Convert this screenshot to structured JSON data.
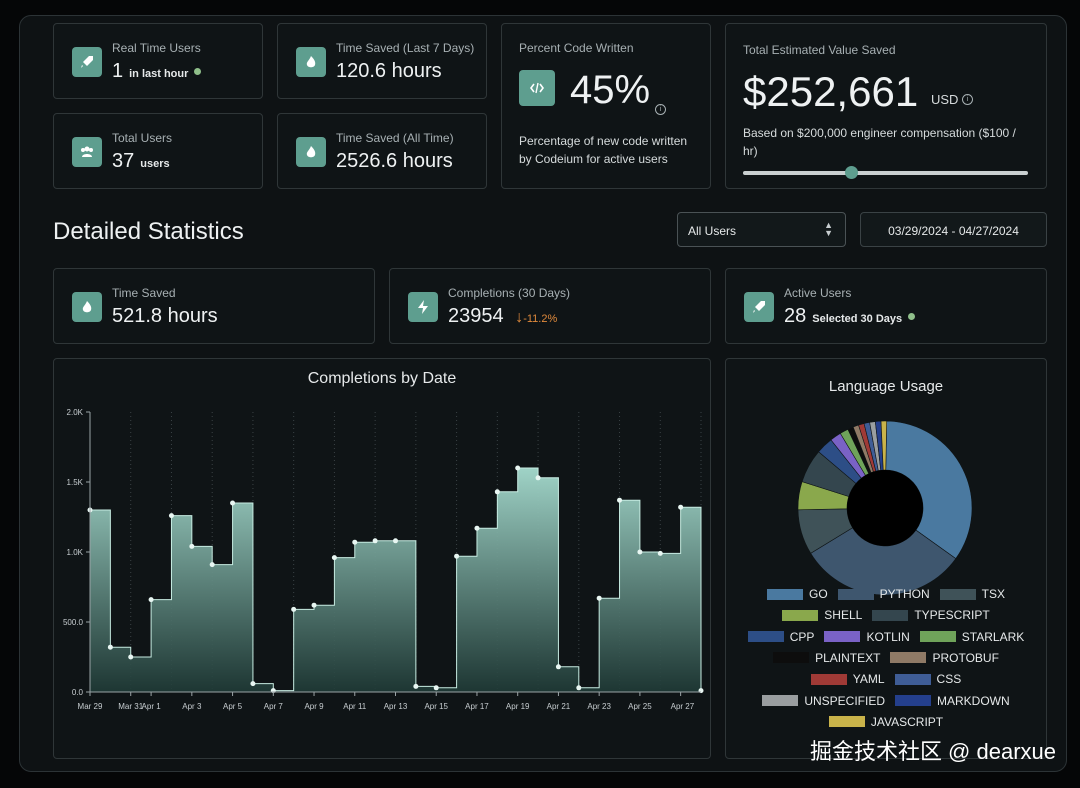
{
  "top": {
    "realtime": {
      "label": "Real Time Users",
      "value": "1",
      "note": "in last hour"
    },
    "saved7": {
      "label": "Time Saved (Last 7 Days)",
      "value": "120.6 hours"
    },
    "total_users": {
      "label": "Total Users",
      "value": "37",
      "unit": "users"
    },
    "saved_all": {
      "label": "Time Saved (All Time)",
      "value": "2526.6 hours"
    },
    "percent": {
      "label": "Percent Code Written",
      "value": "45%",
      "desc": "Percentage of new code written by Codeium for active users"
    },
    "value_saved": {
      "label": "Total Estimated Value Saved",
      "value": "$252,661",
      "currency": "USD",
      "desc": "Based on $200,000 engineer compensation ($100 / hr)",
      "slider_fraction": 0.38
    }
  },
  "detailed": {
    "title": "Detailed Statistics",
    "user_filter": "All Users",
    "date_range": "03/29/2024 - 04/27/2024",
    "time_saved": {
      "label": "Time Saved",
      "value": "521.8 hours"
    },
    "completions": {
      "label": "Completions (30 Days)",
      "value": "23954",
      "change": "-11.2%"
    },
    "active_users": {
      "label": "Active Users",
      "value": "28",
      "note": "Selected 30 Days"
    }
  },
  "colors": {
    "accent": "#5e9e8f",
    "negative": "#e08a3c",
    "online": "#8fbf8a"
  },
  "chart_data": [
    {
      "type": "area",
      "title": "Completions by Date",
      "ylim": [
        0,
        2000
      ],
      "yticks": [
        "0.0",
        "500.0",
        "1.0K",
        "1.5K",
        "2.0K"
      ],
      "xticks": [
        "Mar 29",
        "Mar 31",
        "Apr 1",
        "Apr 3",
        "Apr 5",
        "Apr 7",
        "Apr 9",
        "Apr 11",
        "Apr 13",
        "Apr 15",
        "Apr 17",
        "Apr 19",
        "Apr 21",
        "Apr 23",
        "Apr 25",
        "Apr 27"
      ],
      "values": [
        1300,
        320,
        250,
        660,
        1260,
        1040,
        910,
        1350,
        60,
        10,
        590,
        620,
        960,
        1070,
        1080,
        1080,
        40,
        30,
        970,
        1170,
        1430,
        1600,
        1530,
        180,
        30,
        670,
        1370,
        1000,
        990,
        1320,
        10
      ]
    },
    {
      "type": "pie",
      "title": "Language Usage",
      "labels": [
        "GO",
        "PYTHON",
        "TSX",
        "SHELL",
        "TYPESCRIPT",
        "CPP",
        "KOTLIN",
        "STARLARK",
        "PLAINTEXT",
        "PROTOBUF",
        "YAML",
        "CSS",
        "UNSPECIFIED",
        "MARKDOWN",
        "JAVASCRIPT"
      ],
      "colors": [
        "#4a79a0",
        "#3e566e",
        "#3f5258",
        "#8aa84c",
        "#34464e",
        "#2d4e86",
        "#7a62c6",
        "#6fa35a",
        "#0d0d0d",
        "#8f7a66",
        "#a03a36",
        "#3f5d96",
        "#9a9ea0",
        "#243f8c",
        "#c9b34a"
      ],
      "values": [
        33,
        30,
        8,
        5,
        6,
        3,
        2,
        1.5,
        1,
        1,
        1,
        1,
        1,
        1,
        1
      ]
    }
  ]
}
